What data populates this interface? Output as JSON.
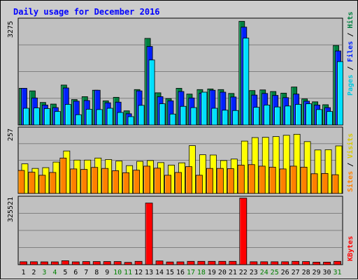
{
  "chart_data": {
    "type": "bar",
    "title": "Daily usage for December 2016",
    "categories": [
      "1",
      "2",
      "3",
      "4",
      "5",
      "6",
      "7",
      "8",
      "9",
      "10",
      "11",
      "12",
      "13",
      "14",
      "15",
      "16",
      "17",
      "18",
      "19",
      "20",
      "21",
      "22",
      "23",
      "24",
      "25",
      "26",
      "27",
      "28",
      "29",
      "30",
      "31"
    ],
    "weekend_days": [
      "3",
      "4",
      "10",
      "11",
      "17",
      "18",
      "24",
      "25",
      "31"
    ],
    "panels": [
      {
        "id": "pages_files_hits",
        "max_label": "3275",
        "ylim": [
          0,
          3275
        ],
        "legend": [
          "Pages",
          "Files",
          "Hits"
        ],
        "series": [
          {
            "name": "Hits",
            "color": "#008040",
            "values": [
              1140,
              1060,
              700,
              650,
              1240,
              790,
              880,
              1080,
              750,
              860,
              440,
              1100,
              2690,
              1000,
              820,
              1140,
              960,
              1100,
              1120,
              1100,
              980,
              3220,
              1070,
              1090,
              1040,
              990,
              1180,
              810,
              720,
              630,
              2470
            ]
          },
          {
            "name": "Files",
            "color": "#0020ff",
            "values": [
              1140,
              840,
              620,
              540,
              1150,
              740,
              760,
              1080,
              690,
              710,
              350,
              1060,
              2440,
              880,
              750,
              1040,
              840,
              990,
              1080,
              1020,
              870,
              3040,
              930,
              980,
              920,
              850,
              960,
              740,
              620,
              540,
              2300
            ]
          },
          {
            "name": "Pages",
            "color": "#00e0ff",
            "values": [
              520,
              530,
              510,
              420,
              640,
              320,
              490,
              480,
              520,
              390,
              260,
              610,
              2020,
              660,
              340,
              580,
              540,
              1020,
              520,
              460,
              450,
              2700,
              550,
              620,
              560,
              590,
              640,
              660,
              480,
              420,
              1970
            ]
          }
        ]
      },
      {
        "id": "visits_sites",
        "max_label": "257",
        "ylim": [
          0,
          257
        ],
        "legend": [
          "Sites",
          "Visits"
        ],
        "series": [
          {
            "name": "Visits",
            "color": "#ffff00",
            "values": [
              117,
              99,
              102,
              124,
              168,
              132,
              132,
              140,
              134,
              128,
              110,
              127,
              130,
              122,
              112,
              121,
              189,
              153,
              152,
              130,
              136,
              207,
              221,
              222,
              225,
              230,
              234,
              205,
              172,
              173,
              188
            ]
          },
          {
            "name": "Sites",
            "color": "#ff8000",
            "values": [
              91,
              84,
              72,
              83,
              140,
              97,
              95,
              103,
              99,
              90,
              82,
              92,
              108,
              100,
              72,
              83,
              106,
              72,
              99,
              99,
              98,
              112,
              114,
              108,
              104,
              97,
              108,
              104,
              78,
              79,
              74
            ]
          }
        ]
      },
      {
        "id": "kbytes",
        "max_label": "325521",
        "ylim": [
          0,
          325521
        ],
        "legend": [
          "KBytes"
        ],
        "series": [
          {
            "name": "KBytes",
            "color": "#ff0000",
            "values": [
              14000,
              14000,
              13500,
              13500,
              19000,
              13500,
              15000,
              15000,
              15000,
              15000,
              11000,
              16000,
              299000,
              18000,
              13000,
              13500,
              16000,
              16000,
              16000,
              16000,
              16000,
              323000,
              14000,
              14000,
              14000,
              14000,
              16000,
              15000,
              12000,
              12000,
              16000
            ]
          }
        ]
      }
    ]
  },
  "colors": {
    "panel_bg": "#c0c0c0",
    "frame_bg": "#cccccc",
    "title": "#0000ff",
    "grid": "#808080",
    "weekday_label": "#000000",
    "weekend_label": "#008000"
  }
}
